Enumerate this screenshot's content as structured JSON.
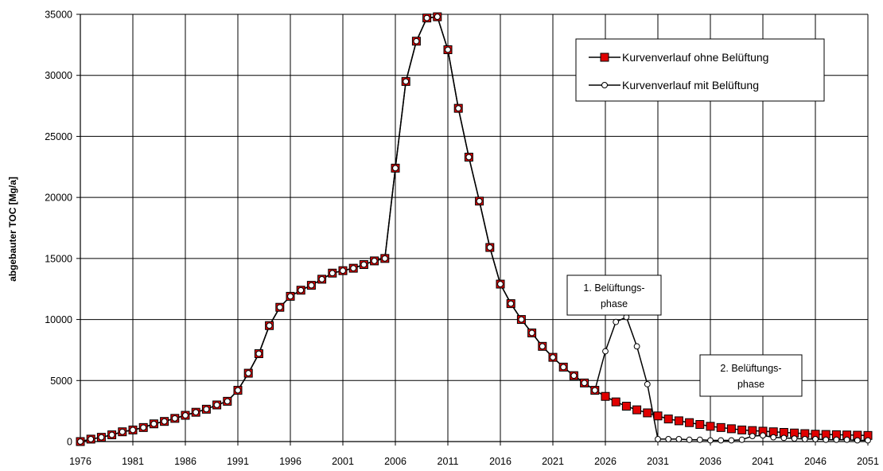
{
  "chart_data": {
    "type": "line",
    "xlabel": "",
    "ylabel": "abgebauter TOC [Mg/a]",
    "xlim": [
      1976,
      2051
    ],
    "ylim": [
      0,
      35000
    ],
    "x_ticks": [
      "1976",
      "1981",
      "1986",
      "1991",
      "1996",
      "2001",
      "2006",
      "2011",
      "2016",
      "2021",
      "2026",
      "2031",
      "2036",
      "2041",
      "2046",
      "2051"
    ],
    "y_ticks": [
      "0",
      "5000",
      "10000",
      "15000",
      "20000",
      "25000",
      "30000",
      "35000"
    ],
    "grid": true,
    "legend_position": "top-right",
    "x": [
      1976,
      1977,
      1978,
      1979,
      1980,
      1981,
      1982,
      1983,
      1984,
      1985,
      1986,
      1987,
      1988,
      1989,
      1990,
      1991,
      1992,
      1993,
      1994,
      1995,
      1996,
      1997,
      1998,
      1999,
      2000,
      2001,
      2002,
      2003,
      2004,
      2005,
      2006,
      2007,
      2008,
      2009,
      2010,
      2011,
      2012,
      2013,
      2014,
      2015,
      2016,
      2017,
      2018,
      2019,
      2020,
      2021,
      2022,
      2023,
      2024,
      2025,
      2026,
      2027,
      2028,
      2029,
      2030,
      2031,
      2032,
      2033,
      2034,
      2035,
      2036,
      2037,
      2038,
      2039,
      2040,
      2041,
      2042,
      2043,
      2044,
      2045,
      2046,
      2047,
      2048,
      2049,
      2050,
      2051
    ],
    "series": [
      {
        "name": "Kurvenverlauf ohne Belüftung",
        "marker": "square",
        "marker_color": "#e00000",
        "values": [
          0,
          200,
          350,
          550,
          800,
          950,
          1150,
          1450,
          1650,
          1900,
          2150,
          2400,
          2650,
          3000,
          3300,
          4200,
          5600,
          7200,
          9500,
          11000,
          11900,
          12400,
          12800,
          13300,
          13800,
          14000,
          14200,
          14500,
          14800,
          15000,
          22400,
          29500,
          32800,
          34700,
          34800,
          32100,
          27300,
          23300,
          19700,
          15900,
          12900,
          11300,
          10000,
          8900,
          7800,
          6900,
          6100,
          5400,
          4800,
          4200,
          3700,
          3250,
          2900,
          2600,
          2350,
          2100,
          1850,
          1700,
          1550,
          1400,
          1250,
          1150,
          1050,
          950,
          900,
          850,
          800,
          750,
          700,
          650,
          600,
          580,
          560,
          540,
          520,
          500
        ]
      },
      {
        "name": "Kurvenverlauf mit Belüftung",
        "marker": "circle",
        "marker_color": "#ffffff",
        "values": [
          0,
          200,
          350,
          550,
          800,
          950,
          1150,
          1450,
          1650,
          1900,
          2150,
          2400,
          2650,
          3000,
          3300,
          4200,
          5600,
          7200,
          9500,
          11000,
          11900,
          12400,
          12800,
          13300,
          13800,
          14000,
          14200,
          14500,
          14800,
          15000,
          22400,
          29500,
          32800,
          34700,
          34800,
          32100,
          27300,
          23300,
          19700,
          15900,
          12900,
          11300,
          10000,
          8900,
          7800,
          6900,
          6100,
          5400,
          4800,
          4200,
          7400,
          9800,
          10200,
          7800,
          4700,
          200,
          200,
          200,
          150,
          150,
          100,
          100,
          100,
          150,
          450,
          500,
          350,
          300,
          250,
          200,
          200,
          150,
          150,
          150,
          100,
          100
        ]
      }
    ],
    "annotations": [
      {
        "id": "phase1",
        "lines": [
          "1. Belüftungs-",
          "phase"
        ]
      },
      {
        "id": "phase2",
        "lines": [
          "2. Belüftungs-",
          "phase"
        ]
      }
    ]
  }
}
